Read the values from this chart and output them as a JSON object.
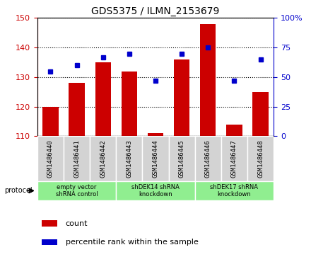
{
  "title": "GDS5375 / ILMN_2153679",
  "samples": [
    "GSM1486440",
    "GSM1486441",
    "GSM1486442",
    "GSM1486443",
    "GSM1486444",
    "GSM1486445",
    "GSM1486446",
    "GSM1486447",
    "GSM1486448"
  ],
  "counts": [
    120.0,
    128.0,
    135.0,
    132.0,
    111.0,
    136.0,
    148.0,
    114.0,
    125.0
  ],
  "percentiles": [
    55.0,
    60.0,
    67.0,
    70.0,
    47.0,
    70.0,
    75.0,
    47.0,
    65.0
  ],
  "ylim_left": [
    110,
    150
  ],
  "ylim_right": [
    0,
    100
  ],
  "yticks_left": [
    110,
    120,
    130,
    140,
    150
  ],
  "yticks_right": [
    0,
    25,
    50,
    75,
    100
  ],
  "bar_color": "#cc0000",
  "dot_color": "#0000cc",
  "protocol_groups": [
    {
      "label": "empty vector\nshRNA control",
      "start": 0,
      "end": 3,
      "color": "#90ee90"
    },
    {
      "label": "shDEK14 shRNA\nknockdown",
      "start": 3,
      "end": 6,
      "color": "#90ee90"
    },
    {
      "label": "shDEK17 shRNA\nknockdown",
      "start": 6,
      "end": 9,
      "color": "#90ee90"
    }
  ],
  "legend_bar_label": "count",
  "legend_dot_label": "percentile rank within the sample",
  "left_axis_color": "#cc0000",
  "right_axis_color": "#0000cc",
  "bar_width": 0.6
}
